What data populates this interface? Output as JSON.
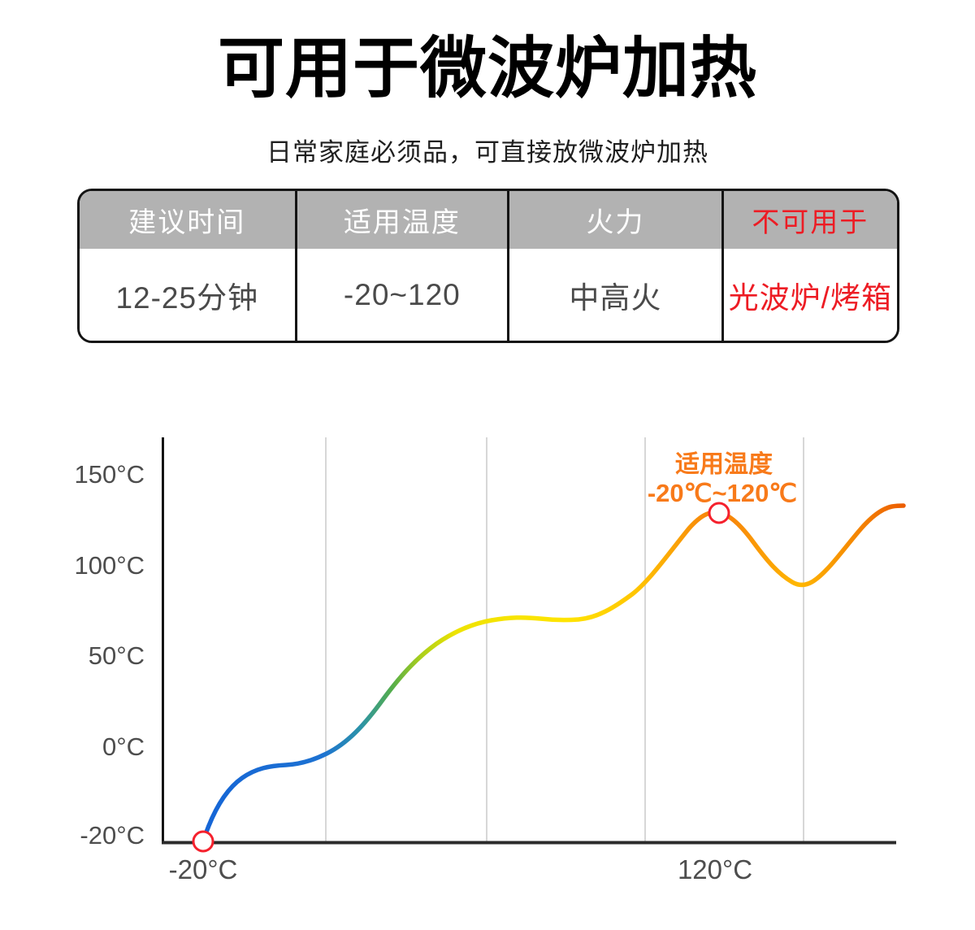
{
  "page": {
    "title": "可用于微波炉加热",
    "subtitle": "日常家庭必须品，可直接放微波炉加热"
  },
  "spec_table": {
    "header_bg": "#b2b2b2",
    "border_color": "#141414",
    "warning_color": "#ed1c24",
    "columns": [
      {
        "header": "建议时间",
        "value": "12-25分钟"
      },
      {
        "header": "适用温度",
        "value": "-20~120"
      },
      {
        "header": "火力",
        "value": "中高火"
      },
      {
        "header": "不可用于",
        "value": "光波炉/烤箱"
      }
    ]
  },
  "chart_data": {
    "type": "line",
    "annotation": {
      "line1": "适用温度",
      "line2": "-20℃~120℃",
      "color": "#f87a1a"
    },
    "y_axis": {
      "ticks": [
        "150°C",
        "100°C",
        "50°C",
        "0°C",
        "-20°C"
      ],
      "values_c": [
        150,
        100,
        50,
        0,
        -20
      ]
    },
    "x_axis": {
      "ticks": [
        "-20°C",
        "120°C"
      ]
    },
    "series": [
      {
        "name": "temperature-curve",
        "samples_temp_c": [
          -20,
          -14,
          -11,
          -10,
          -9,
          -4,
          6,
          16,
          28,
          42,
          56,
          64,
          69,
          70,
          70,
          69,
          70,
          75,
          84,
          96,
          107,
          120,
          129,
          125,
          113,
          100,
          91,
          89,
          94,
          103,
          115,
          126,
          131,
          132
        ]
      }
    ],
    "markers": [
      {
        "name": "start",
        "temp_c": -20
      },
      {
        "name": "peak",
        "temp_c": 129
      }
    ],
    "gradient": [
      {
        "offset": "0%",
        "color": "#1565d6"
      },
      {
        "offset": "17%",
        "color": "#1d72d2"
      },
      {
        "offset": "22.5%",
        "color": "#2b93a8"
      },
      {
        "offset": "27%",
        "color": "#55ad4a"
      },
      {
        "offset": "31%",
        "color": "#a9cf1c"
      },
      {
        "offset": "36%",
        "color": "#eee300"
      },
      {
        "offset": "52%",
        "color": "#ffe400"
      },
      {
        "offset": "62%",
        "color": "#ffc400"
      },
      {
        "offset": "73.5%",
        "color": "#f67d0c"
      },
      {
        "offset": "85%",
        "color": "#ffb800"
      },
      {
        "offset": "100%",
        "color": "#ec5d01"
      }
    ],
    "grid": {
      "vertical_lines": 4,
      "horizontal_lines": 0
    },
    "colors": {
      "axis": "#262626",
      "grid": "#cdcdcd",
      "tick_label": "#4d4d4d",
      "marker_stroke": "#f5212d",
      "marker_fill": "#ffffff"
    },
    "ylim": [
      -20,
      160
    ],
    "legend": "none"
  }
}
